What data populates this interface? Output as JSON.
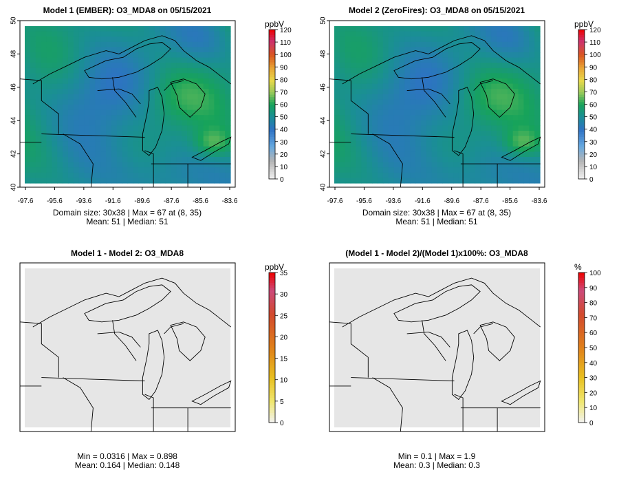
{
  "panels": [
    {
      "title": "Model 1 (EMBER): O3_MDA8 on 05/15/2021",
      "unit": "ppbV",
      "colorbar_ticks": [
        "0",
        "10",
        "20",
        "30",
        "40",
        "50",
        "60",
        "70",
        "80",
        "90",
        "100",
        "110",
        "120"
      ],
      "colorbar_max": 120,
      "lat_labels": [
        "40",
        "42",
        "44",
        "46",
        "48",
        "50"
      ],
      "lon_labels": [
        "-97.6",
        "-95.6",
        "-93.6",
        "-91.6",
        "-89.6",
        "-87.6",
        "-85.6",
        "-83.6"
      ],
      "stats_line1": "Domain size: 30x38 | Max = 67 at (8, 35)",
      "stats_line2": "Mean: 51 |  Median: 51",
      "field": "ozone",
      "field_min": 38,
      "field_max": 67
    },
    {
      "title": "Model 2 (ZeroFires): O3_MDA8 on 05/15/2021",
      "unit": "ppbV",
      "colorbar_ticks": [
        "0",
        "10",
        "20",
        "30",
        "40",
        "50",
        "60",
        "70",
        "80",
        "90",
        "100",
        "110",
        "120"
      ],
      "colorbar_max": 120,
      "lat_labels": [
        "40",
        "42",
        "44",
        "46",
        "48",
        "50"
      ],
      "lon_labels": [
        "-97.6",
        "-95.6",
        "-93.6",
        "-91.6",
        "-89.6",
        "-87.6",
        "-85.6",
        "-83.6"
      ],
      "stats_line1": "Domain size: 30x38 | Max = 67 at (8, 35)",
      "stats_line2": "Mean: 51 |  Median: 51",
      "field": "ozone",
      "field_min": 38,
      "field_max": 67
    },
    {
      "title": "Model 1 - Model 2: O3_MDA8",
      "unit": "ppbV",
      "colorbar_ticks": [
        "0",
        "5",
        "10",
        "15",
        "20",
        "25",
        "30",
        "35"
      ],
      "colorbar_max": 35,
      "lat_labels": [],
      "lon_labels": [],
      "stats_line1": "Min = 0.0316 | Max = 0.898",
      "stats_line2": "Mean: 0.164 |  Median: 0.148",
      "field": "difference",
      "field_min": 0.0316,
      "field_max": 0.898
    },
    {
      "title": "(Model 1 - Model 2)/(Model 1)x100%: O3_MDA8",
      "unit": "%",
      "colorbar_ticks": [
        "0",
        "10",
        "20",
        "30",
        "40",
        "50",
        "60",
        "70",
        "80",
        "90",
        "100"
      ],
      "colorbar_max": 100,
      "lat_labels": [],
      "lon_labels": [],
      "stats_line1": "Min = 0.1 | Max = 1.9",
      "stats_line2": "Mean: 0.3 |  Median: 0.3",
      "field": "percent",
      "field_min": 0.1,
      "field_max": 1.9
    }
  ],
  "colors": {
    "ozone_low": "#2f6fc0",
    "ozone_mid": "#12a56e",
    "ozone_high": "#d8d84a",
    "diff_background": "#e6e6e6"
  }
}
